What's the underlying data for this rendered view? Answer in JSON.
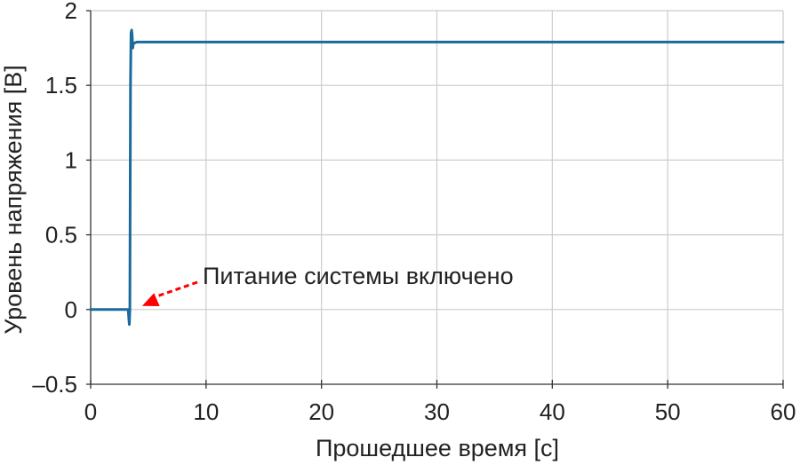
{
  "chart_data": {
    "type": "line",
    "xlabel": "Прошедшее время [с]",
    "ylabel": "Уровень напряжения [В]",
    "xlim": [
      0,
      60
    ],
    "ylim": [
      -0.5,
      2
    ],
    "xticks": [
      0,
      10,
      20,
      30,
      40,
      50,
      60
    ],
    "xtick_labels": [
      "0",
      "10",
      "20",
      "30",
      "40",
      "50",
      "60"
    ],
    "yticks": [
      -0.5,
      0,
      0.5,
      1,
      1.5,
      2
    ],
    "ytick_labels": [
      "–0.5",
      "0",
      "0.5",
      "1",
      "1.5",
      "2"
    ],
    "grid": true,
    "series": [
      {
        "color": "#1a6a9c",
        "x": [
          0.0,
          3.25,
          3.3,
          3.35,
          3.4,
          3.45,
          3.5,
          3.55,
          3.6,
          3.65,
          3.7,
          4.0,
          60.0
        ],
        "y": [
          0.0,
          0.0,
          -0.05,
          -0.1,
          0.0,
          1.5,
          1.85,
          1.87,
          1.83,
          1.75,
          1.78,
          1.79,
          1.79
        ]
      }
    ],
    "annotations": [
      {
        "text": "Питание системы включено",
        "point": [
          4.0,
          0.0
        ],
        "arrow_color": "#ff0000"
      }
    ]
  }
}
